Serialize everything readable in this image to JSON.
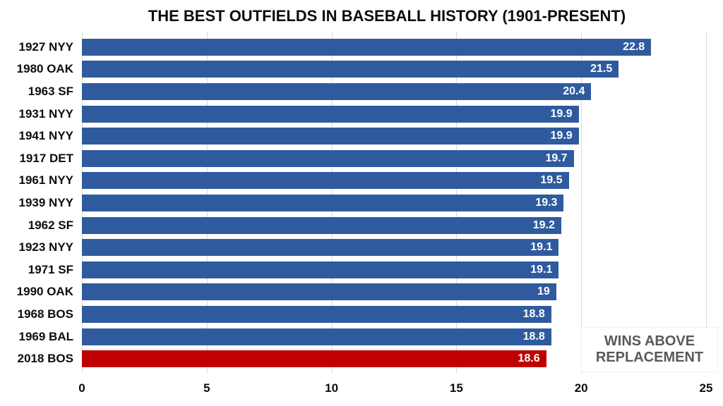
{
  "title": "THE BEST OUTFIELDS IN BASEBALL HISTORY (1901-PRESENT)",
  "colors": {
    "bar_blue": "#2F5B9E",
    "bar_red": "#C00000",
    "gridline": "#D9D9D9",
    "value_text": "#FFFFFF",
    "axis_text": "#0D0D0D",
    "note_text": "#595959",
    "background": "#FFFFFF"
  },
  "chart_data": {
    "type": "bar",
    "orientation": "horizontal",
    "title": "THE BEST OUTFIELDS IN BASEBALL HISTORY (1901-PRESENT)",
    "categories": [
      "1927 NYY",
      "1980 OAK",
      "1963 SF",
      "1931 NYY",
      "1941 NYY",
      "1917 DET",
      "1961 NYY",
      "1939 NYY",
      "1962 SF",
      "1923 NYY",
      "1971 SF",
      "1990 OAK",
      "1968 BOS",
      "1969 BAL",
      "2018 BOS"
    ],
    "values": [
      22.8,
      21.5,
      20.4,
      19.9,
      19.9,
      19.7,
      19.5,
      19.3,
      19.2,
      19.1,
      19.1,
      19,
      18.8,
      18.8,
      18.6
    ],
    "value_labels": [
      "22.8",
      "21.5",
      "20.4",
      "19.9",
      "19.9",
      "19.7",
      "19.5",
      "19.3",
      "19.2",
      "19.1",
      "19.1",
      "19",
      "18.8",
      "18.8",
      "18.6"
    ],
    "highlight_index": 14,
    "xlabel": "",
    "ylabel": "",
    "xlim": [
      0,
      25
    ],
    "x_ticks": [
      0,
      5,
      10,
      15,
      20,
      25
    ],
    "grid": true,
    "legend_position": "bottom-right",
    "note_lines": [
      "WINS ABOVE",
      "REPLACEMENT"
    ]
  }
}
